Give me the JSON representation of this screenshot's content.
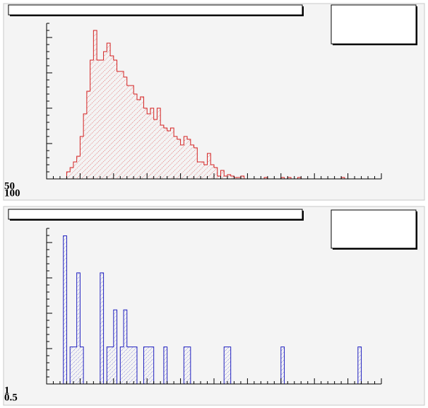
{
  "chart_data": [
    {
      "type": "histogram",
      "color": "#d42020",
      "hatch": "diagonal",
      "axis_labels": [
        "50",
        "100"
      ],
      "xlim": [
        0,
        100
      ],
      "ylim": [
        0,
        110
      ],
      "bins": [
        0,
        1,
        2,
        3,
        4,
        5,
        6,
        7,
        8,
        9,
        10,
        11,
        12,
        13,
        14,
        15,
        16,
        17,
        18,
        19,
        20,
        21,
        22,
        23,
        24,
        25,
        26,
        27,
        28,
        29,
        30,
        31,
        32,
        33,
        34,
        35,
        36,
        37,
        38,
        39,
        40,
        41,
        42,
        43,
        44,
        45,
        46,
        47,
        48,
        49,
        50,
        51,
        52,
        53,
        54,
        55,
        56,
        57,
        58,
        59,
        60,
        61,
        62,
        63,
        64,
        65,
        66,
        67,
        68,
        69,
        70,
        71,
        72,
        73,
        74,
        75,
        76,
        77,
        78,
        79,
        80,
        81,
        82,
        83,
        84,
        85,
        86,
        87,
        88,
        89,
        90,
        91,
        92,
        93,
        94,
        95,
        96,
        97,
        98,
        99,
        100
      ],
      "values": [
        0,
        0,
        0,
        0,
        0,
        0,
        5,
        8,
        12,
        16,
        30,
        46,
        62,
        84,
        105,
        84,
        84,
        90,
        96,
        87,
        84,
        76,
        76,
        72,
        66,
        66,
        60,
        56,
        58,
        50,
        46,
        50,
        42,
        50,
        38,
        36,
        34,
        36,
        30,
        28,
        24,
        30,
        28,
        24,
        22,
        12,
        12,
        10,
        18,
        10,
        8,
        2,
        6,
        2,
        3,
        2,
        1,
        1,
        2,
        0,
        0,
        0,
        0,
        0,
        0,
        1,
        0,
        0,
        0,
        0,
        1,
        0,
        1,
        0,
        0,
        1,
        0,
        0,
        0,
        0,
        0,
        0,
        0,
        0,
        0,
        0,
        0,
        0,
        1,
        0,
        0,
        0,
        0,
        0,
        0,
        0,
        0,
        0,
        0,
        0
      ]
    },
    {
      "type": "histogram",
      "color": "#2020c0",
      "hatch": "dots",
      "axis_labels": [
        "1",
        "0.5"
      ],
      "xlim": [
        0,
        100
      ],
      "ylim": [
        0,
        8.4
      ],
      "bins": [
        0,
        1,
        2,
        3,
        4,
        5,
        6,
        7,
        8,
        9,
        10,
        11,
        12,
        13,
        14,
        15,
        16,
        17,
        18,
        19,
        20,
        21,
        22,
        23,
        24,
        25,
        26,
        27,
        28,
        29,
        30,
        31,
        32,
        33,
        34,
        35,
        36,
        37,
        38,
        39,
        40,
        41,
        42,
        43,
        44,
        45,
        46,
        47,
        48,
        49,
        50,
        51,
        52,
        53,
        54,
        55,
        56,
        57,
        58,
        59,
        60,
        61,
        62,
        63,
        64,
        65,
        66,
        67,
        68,
        69,
        70,
        71,
        72,
        73,
        74,
        75,
        76,
        77,
        78,
        79,
        80,
        81,
        82,
        83,
        84,
        85,
        86,
        87,
        88,
        89,
        90,
        91,
        92,
        93,
        94,
        95,
        96,
        97,
        98,
        99,
        100
      ],
      "values": [
        0,
        0,
        0,
        0,
        0,
        8,
        0,
        2,
        2,
        6,
        2,
        0,
        0,
        0,
        0,
        0,
        6,
        0,
        2,
        2,
        4,
        0,
        2,
        4,
        2,
        2,
        2,
        0,
        0,
        2,
        2,
        2,
        0,
        0,
        0,
        2,
        0,
        0,
        0,
        0,
        0,
        2,
        2,
        0,
        0,
        0,
        0,
        0,
        0,
        0,
        0,
        0,
        0,
        2,
        2,
        0,
        0,
        0,
        0,
        0,
        0,
        0,
        0,
        0,
        0,
        0,
        0,
        0,
        0,
        0,
        2,
        0,
        0,
        0,
        0,
        0,
        0,
        0,
        0,
        0,
        0,
        0,
        0,
        0,
        0,
        0,
        0,
        0,
        0,
        0,
        0,
        0,
        0,
        2,
        0,
        0,
        0,
        0,
        0,
        0
      ]
    }
  ]
}
